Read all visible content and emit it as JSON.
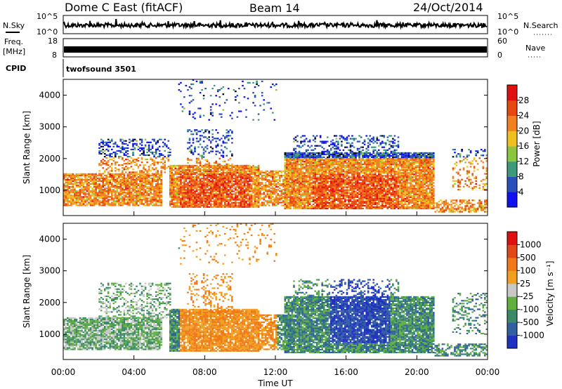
{
  "header": {
    "title": "Dome C East (fitACF)",
    "beam": "Beam 14",
    "date": "24/Oct/2014"
  },
  "status_panels": {
    "nsky_label": "N.Sky",
    "nsearch_label": "N.Search",
    "nsky_ticks": [
      "10^5",
      "10^0"
    ],
    "nsearch_ticks": [
      "10^5",
      "10^0"
    ],
    "freq_label_1": "Freq.",
    "freq_label_2": "[MHz]",
    "freq_ticks": [
      "18",
      "8"
    ],
    "nave_label": "Nave",
    "nave_ticks": [
      "60",
      "0"
    ],
    "cpid_label": "CPID",
    "cpid_value": "twofsound 3501"
  },
  "colors": {
    "power_scale": [
      "#1010f0",
      "#2a4fb8",
      "#3a9a7a",
      "#8cc63e",
      "#f0c020",
      "#f08020",
      "#e84810",
      "#e01010"
    ],
    "velocity_scale": [
      "#2030c0",
      "#3060a0",
      "#3a8a6a",
      "#60b040",
      "#c8c8c8",
      "#f0a020",
      "#f07818",
      "#e04818",
      "#e01010"
    ]
  },
  "chart_data": [
    {
      "type": "heatmap",
      "panel": "power",
      "ylabel": "Slant Range [km]",
      "yticks": [
        "1000",
        "2000",
        "3000",
        "4000"
      ],
      "ylim": [
        200,
        4500
      ],
      "xlim_hours": [
        0,
        24
      ],
      "colorbar_label": "Power [dB]",
      "colorbar_ticks": [
        "4",
        "8",
        "12",
        "16",
        "20",
        "24",
        "28"
      ],
      "colorbar_range": [
        0,
        32
      ]
    },
    {
      "type": "heatmap",
      "panel": "velocity",
      "ylabel": "Slant Range [km]",
      "yticks": [
        "1000",
        "2000",
        "3000",
        "4000"
      ],
      "ylim": [
        200,
        4500
      ],
      "xlim_hours": [
        0,
        24
      ],
      "colorbar_label": "Velocity [m s⁻¹]",
      "colorbar_ticks": [
        "1000",
        "500",
        "100",
        "25",
        "-25",
        "-100",
        "-500",
        "-1000"
      ]
    }
  ],
  "xaxis": {
    "label": "Time UT",
    "ticks": [
      "00:00",
      "04:00",
      "08:00",
      "12:00",
      "16:00",
      "20:00",
      "00:00"
    ]
  }
}
